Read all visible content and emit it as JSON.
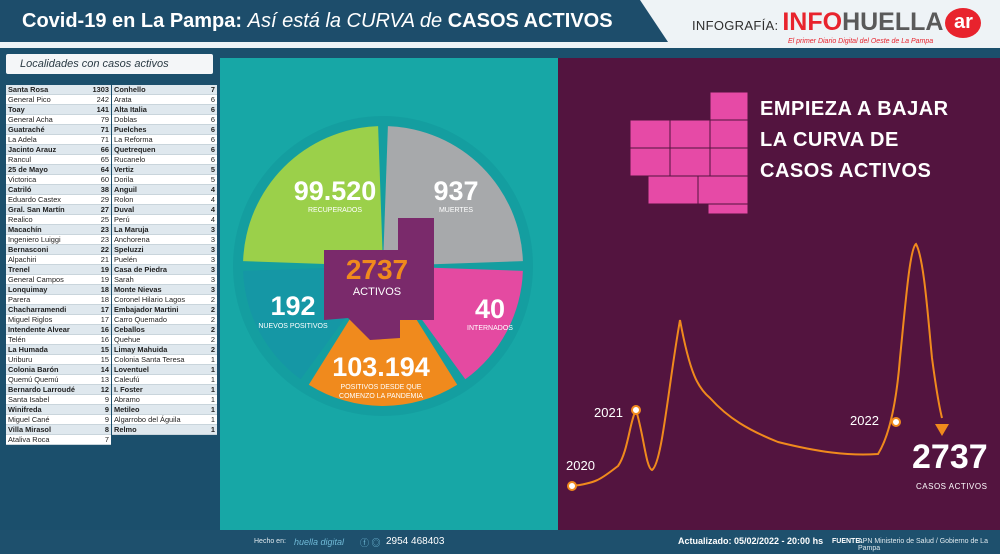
{
  "header": {
    "title_bold": "Covid-19 en La Pampa:",
    "title_italic": "Así está la CURVA de",
    "title_end": "CASOS ACTIVOS",
    "brand_prefix": "INFOGRAFÍA:",
    "brand_info": "INFO",
    "brand_huella": "HUELLA",
    "brand_ar": "ar",
    "brand_tagline": "El primer Diario Digital del Oeste de La Pampa"
  },
  "left": {
    "subtitle": "Localidades con casos activos",
    "col1": [
      {
        "name": "Santa Rosa",
        "value": "1303",
        "bold": true
      },
      {
        "name": "General Pico",
        "value": "242",
        "bold": false
      },
      {
        "name": "Toay",
        "value": "141",
        "bold": true
      },
      {
        "name": "General Acha",
        "value": "79",
        "bold": false
      },
      {
        "name": "Guatraché",
        "value": "71",
        "bold": true
      },
      {
        "name": "La Adela",
        "value": "71",
        "bold": false
      },
      {
        "name": "Jacinto Arauz",
        "value": "66",
        "bold": true
      },
      {
        "name": "Rancul",
        "value": "65",
        "bold": false
      },
      {
        "name": "25 de Mayo",
        "value": "64",
        "bold": true
      },
      {
        "name": "Victorica",
        "value": "60",
        "bold": false
      },
      {
        "name": "Catriló",
        "value": "38",
        "bold": true
      },
      {
        "name": "Eduardo Castex",
        "value": "29",
        "bold": false
      },
      {
        "name": "Gral. San Martín",
        "value": "27",
        "bold": true
      },
      {
        "name": "Realico",
        "value": "25",
        "bold": false
      },
      {
        "name": "Macachín",
        "value": "23",
        "bold": true
      },
      {
        "name": "Ingeniero Luiggi",
        "value": "23",
        "bold": false
      },
      {
        "name": "Bernasconi",
        "value": "22",
        "bold": true
      },
      {
        "name": "Alpachiri",
        "value": "21",
        "bold": false
      },
      {
        "name": "Trenel",
        "value": "19",
        "bold": true
      },
      {
        "name": "General Campos",
        "value": "19",
        "bold": false
      },
      {
        "name": "Lonquimay",
        "value": "18",
        "bold": true
      },
      {
        "name": "Parera",
        "value": "18",
        "bold": false
      },
      {
        "name": "Chacharramendi",
        "value": "17",
        "bold": true
      },
      {
        "name": "Miguel Riglos",
        "value": "17",
        "bold": false
      },
      {
        "name": "Intendente Alvear",
        "value": "16",
        "bold": true
      },
      {
        "name": "Telén",
        "value": "16",
        "bold": false
      },
      {
        "name": "La Humada",
        "value": "15",
        "bold": true
      },
      {
        "name": "Uriburu",
        "value": "15",
        "bold": false
      },
      {
        "name": "Colonia Barón",
        "value": "14",
        "bold": true
      },
      {
        "name": "Quemú Quemú",
        "value": "13",
        "bold": false
      },
      {
        "name": "Bernardo Larroudé",
        "value": "12",
        "bold": true
      },
      {
        "name": "Santa Isabel",
        "value": "9",
        "bold": false
      },
      {
        "name": "Winifreda",
        "value": "9",
        "bold": true
      },
      {
        "name": "Miguel Cané",
        "value": "9",
        "bold": false
      },
      {
        "name": "Villa Mirasol",
        "value": "8",
        "bold": true
      },
      {
        "name": "Ataliva Roca",
        "value": "7",
        "bold": false
      }
    ],
    "col2": [
      {
        "name": "Conhello",
        "value": "7",
        "bold": true
      },
      {
        "name": "Arata",
        "value": "6",
        "bold": false
      },
      {
        "name": "Alta Italia",
        "value": "6",
        "bold": true
      },
      {
        "name": "Doblas",
        "value": "6",
        "bold": false
      },
      {
        "name": "Puelches",
        "value": "6",
        "bold": true
      },
      {
        "name": "La Reforma",
        "value": "6",
        "bold": false
      },
      {
        "name": "Quetrequen",
        "value": "6",
        "bold": true
      },
      {
        "name": "Rucanelo",
        "value": "6",
        "bold": false
      },
      {
        "name": "Vertiz",
        "value": "5",
        "bold": true
      },
      {
        "name": "Dorila",
        "value": "5",
        "bold": false
      },
      {
        "name": "Anguil",
        "value": "4",
        "bold": true
      },
      {
        "name": "Rolon",
        "value": "4",
        "bold": false
      },
      {
        "name": "Duval",
        "value": "4",
        "bold": true
      },
      {
        "name": "Perú",
        "value": "4",
        "bold": false
      },
      {
        "name": "La Maruja",
        "value": "3",
        "bold": true
      },
      {
        "name": "Anchorena",
        "value": "3",
        "bold": false
      },
      {
        "name": "Speluzzi",
        "value": "3",
        "bold": true
      },
      {
        "name": "Puelén",
        "value": "3",
        "bold": false
      },
      {
        "name": "Casa de Piedra",
        "value": "3",
        "bold": true
      },
      {
        "name": "Sarah",
        "value": "3",
        "bold": false
      },
      {
        "name": "Monte Nievas",
        "value": "3",
        "bold": true
      },
      {
        "name": "Coronel Hilario Lagos",
        "value": "2",
        "bold": false
      },
      {
        "name": "Embajador Martini",
        "value": "2",
        "bold": true
      },
      {
        "name": "Carro Quemado",
        "value": "2",
        "bold": false
      },
      {
        "name": "Ceballos",
        "value": "2",
        "bold": true
      },
      {
        "name": "Quehue",
        "value": "2",
        "bold": false
      },
      {
        "name": "Limay Mahuida",
        "value": "2",
        "bold": true
      },
      {
        "name": "Colonia Santa Teresa",
        "value": "1",
        "bold": false
      },
      {
        "name": "Loventuel",
        "value": "1",
        "bold": true
      },
      {
        "name": "Caleufú",
        "value": "1",
        "bold": false
      },
      {
        "name": "I. Foster",
        "value": "1",
        "bold": true
      },
      {
        "name": "Abramo",
        "value": "1",
        "bold": false
      },
      {
        "name": "Metileo",
        "value": "1",
        "bold": true
      },
      {
        "name": "Algarrobo del Águila",
        "value": "1",
        "bold": false
      },
      {
        "name": "Relmo",
        "value": "1",
        "bold": true
      }
    ]
  },
  "pie": {
    "recuperados_value": "99.520",
    "recuperados_label": "RECUPERADOS",
    "muertes_value": "937",
    "muertes_label": "MUERTES",
    "nuevos_value": "192",
    "nuevos_label": "NUEVOS POSITIVOS",
    "internados_value": "40",
    "internados_label": "INTERNADOS",
    "positivos_value": "103.194",
    "positivos_label": "POSITIVOS DESDE QUE COMENZO LA PANDEMIA",
    "activos_value": "2737",
    "activos_label": "ACTIVOS",
    "colors": {
      "recuperados": "#9bd04a",
      "muertes": "#a7a9ab",
      "nuevos": "#1597a5",
      "internados": "#e44aa1",
      "positivos": "#f08a1d",
      "center": "#7a2a6b"
    }
  },
  "curve": {
    "heading": "EMPIEZA A BAJAR LA CURVA DE CASOS ACTIVOS",
    "year_2020": "2020",
    "year_2021": "2021",
    "year_2022": "2022",
    "active_value": "2737",
    "active_label": "CASOS ACTIVOS",
    "line_color": "#f08a1d",
    "map_color": "#e64aa6"
  },
  "footer": {
    "made_in": "Hecho en:",
    "made_brand": "huella digital",
    "phone": "2954 468403",
    "updated": "Actualizado: 05/02/2022 - 20:00 hs",
    "source_label": "FUENTE:",
    "source_text": "APN Ministerio de Salud / Gobierno de La Pampa"
  }
}
